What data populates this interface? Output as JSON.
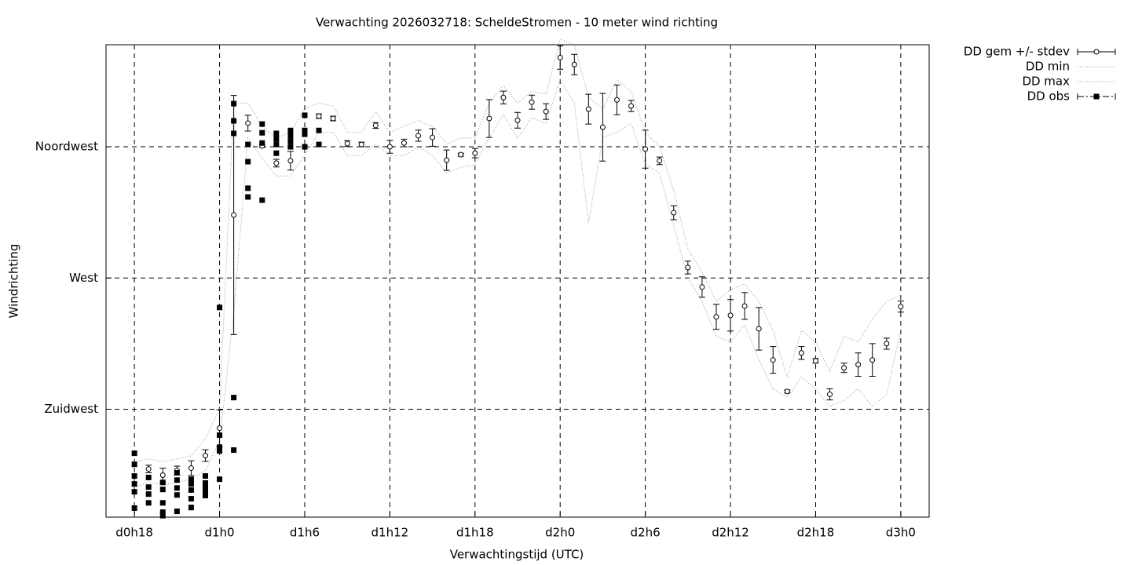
{
  "chart_data": {
    "type": "errorbar",
    "title": "Verwachting 2026032718: ScheldeStromen - 10 meter wind richting",
    "x_label": "Verwachtingstijd (UTC)",
    "y_label": "Windrichting",
    "xlim": [
      16,
      74
    ],
    "ylim": [
      188,
      350
    ],
    "xticks": [
      {
        "value": 18,
        "label": "d0h18"
      },
      {
        "value": 24,
        "label": "d1h0"
      },
      {
        "value": 30,
        "label": "d1h6"
      },
      {
        "value": 36,
        "label": "d1h12"
      },
      {
        "value": 42,
        "label": "d1h18"
      },
      {
        "value": 48,
        "label": "d2h0"
      },
      {
        "value": 54,
        "label": "d2h6"
      },
      {
        "value": 60,
        "label": "d2h12"
      },
      {
        "value": 66,
        "label": "d2h18"
      },
      {
        "value": 72,
        "label": "d3h0"
      }
    ],
    "yticks": [
      {
        "value": 225,
        "label": "Zuidwest"
      },
      {
        "value": 270,
        "label": "West"
      },
      {
        "value": 315,
        "label": "Noordwest"
      }
    ],
    "grid": true,
    "legend": "outside-top-right",
    "x": [
      18,
      19,
      20,
      21,
      22,
      23,
      24,
      25,
      26,
      27,
      28,
      29,
      30,
      31,
      32,
      33,
      34,
      35,
      36,
      37,
      38,
      39,
      40,
      41,
      42,
      43,
      44,
      45,
      46,
      47,
      48,
      49,
      50,
      51,
      52,
      53,
      54,
      55,
      56,
      57,
      58,
      59,
      60,
      61,
      62,
      63,
      64,
      65,
      66,
      67,
      68,
      69,
      70,
      71,
      72
    ],
    "series": [
      {
        "name": "DD gem +/- stdev",
        "color": "#000000",
        "values": [
          null,
          204.5,
          202.4,
          204,
          204.8,
          209.1,
          218.5,
          291.6,
          323.1,
          315.3,
          309.4,
          310.2,
          null,
          325.5,
          324.7,
          316.1,
          315.8,
          322.3,
          315,
          316.3,
          318.8,
          318.2,
          310.4,
          312.3,
          312.8,
          324.7,
          331.9,
          324.1,
          330.3,
          327.1,
          345.6,
          343.2,
          327.9,
          321.7,
          331.1,
          329,
          314.2,
          310.2,
          292.4,
          273.6,
          266.9,
          256.7,
          257.2,
          260.4,
          252.6,
          241.9,
          231.1,
          244.3,
          241.6,
          230.1,
          239.2,
          240.3,
          241.9,
          247.5,
          260.2
        ],
        "errors": [
          null,
          1.3,
          2.4,
          1.5,
          2.5,
          2,
          6.3,
          41,
          2.7,
          0.5,
          1.3,
          3.2,
          null,
          0.8,
          0.8,
          1,
          0.8,
          1,
          2.2,
          1.3,
          1.9,
          3,
          3.5,
          0.5,
          1.6,
          6.5,
          2.2,
          2.7,
          2.4,
          2.7,
          4,
          3.5,
          5.1,
          11.6,
          5.1,
          1.9,
          6.5,
          1.3,
          2.4,
          2.2,
          3.5,
          4.3,
          5.4,
          4.6,
          7.3,
          4.6,
          0.5,
          2.2,
          0.8,
          1.9,
          1.6,
          4,
          5.6,
          1.9,
          1.9
        ]
      },
      {
        "name": "DD min",
        "color": "#999999",
        "values": [
          198,
          200,
          199,
          200,
          201,
          204,
          214,
          258,
          318,
          311,
          305,
          305,
          312,
          320,
          320,
          312,
          312,
          316,
          312,
          312,
          315,
          312,
          306,
          308,
          309,
          318,
          326,
          318,
          325,
          323,
          338,
          330,
          289,
          318,
          320,
          323,
          309,
          306,
          288,
          270,
          262,
          250,
          248,
          254,
          242,
          232,
          229,
          236,
          232,
          226,
          228,
          232,
          226,
          230,
          252
        ]
      },
      {
        "name": "DD max",
        "color": "#999999",
        "values": [
          207,
          208,
          207,
          208,
          209,
          215,
          225,
          330,
          330,
          322,
          318,
          320,
          328,
          330,
          329,
          320,
          320,
          327,
          320,
          322,
          324,
          322,
          316,
          318,
          318,
          330,
          336,
          330,
          334,
          333,
          352,
          350,
          332,
          328,
          338,
          334,
          320,
          315,
          300,
          280,
          272,
          262,
          266,
          268,
          262,
          252,
          236,
          252,
          248,
          238,
          250,
          248,
          256,
          262,
          264
        ]
      },
      {
        "name": "DD obs",
        "color": "#000000",
        "x": [
          18,
          18,
          18,
          18,
          18,
          18,
          19,
          19,
          19,
          19,
          20,
          20,
          20,
          20,
          20,
          21,
          21,
          21,
          21,
          21,
          22,
          22,
          22,
          22,
          22,
          23,
          23,
          23,
          23,
          23,
          24,
          24,
          24,
          24,
          24,
          25,
          25,
          25,
          25,
          25,
          26,
          26,
          26,
          26,
          27,
          27,
          27,
          27,
          28,
          28,
          28,
          28,
          29,
          29,
          29,
          29,
          30,
          30,
          30,
          30,
          31,
          31
        ],
        "values": [
          209.9,
          206.1,
          202.1,
          199.4,
          196.7,
          191.1,
          201.6,
          198.3,
          195.9,
          192.9,
          199.9,
          197.5,
          192.9,
          189.7,
          188.5,
          203.2,
          200.7,
          198,
          195.6,
          190,
          201,
          199.4,
          197.3,
          194.3,
          191.3,
          202.1,
          199.7,
          198.3,
          196.5,
          195.4,
          259.9,
          216.1,
          212,
          210.7,
          201,
          329.8,
          323.9,
          319.6,
          229,
          211,
          315.8,
          309.9,
          300.8,
          297.8,
          322.8,
          319.8,
          316.3,
          296.7,
          319.6,
          317.7,
          315.8,
          312.8,
          320.6,
          318.8,
          316.9,
          315,
          325.8,
          320.6,
          319.3,
          315,
          320.6,
          315.8
        ]
      }
    ]
  }
}
